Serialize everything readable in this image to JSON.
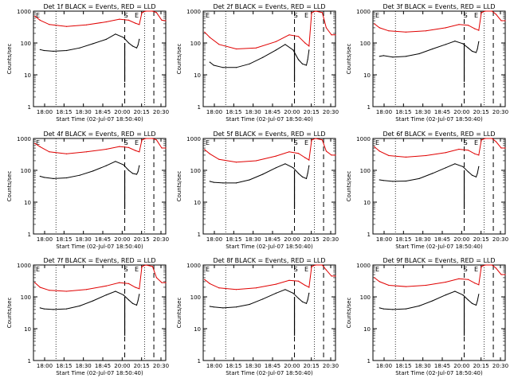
{
  "window": {
    "title": ""
  },
  "colors": {
    "events": "#000000",
    "lld": "#e00000",
    "axes": "#000000"
  },
  "chart_data": [
    {
      "type": "line",
      "title": "Det 1f BLACK = Events, RED = LLD",
      "ylabel": "Counts/sec",
      "xlabel": "Start Time (02-Jul-07 18:50:40)",
      "xticks": [
        "18:00",
        "18:15",
        "18:30",
        "18:45",
        "20:00",
        "20:15",
        "20:30"
      ],
      "yticks": [
        "1",
        "10",
        "100",
        "1000"
      ],
      "yscale": "log",
      "ylim": [
        1,
        1000
      ],
      "markers": [
        "S",
        "E"
      ],
      "series": [
        {
          "name": "BLACK = Events",
          "x": [
            0.05,
            0.08,
            0.15,
            0.25,
            0.35,
            0.45,
            0.55,
            0.62,
            0.68,
            0.72,
            0.75,
            0.78,
            0.79,
            0.8
          ],
          "y": [
            62,
            58,
            55,
            58,
            70,
            95,
            130,
            190,
            150,
            100,
            80,
            70,
            85,
            130
          ]
        },
        {
          "name": "RED = LLD",
          "x": [
            0.01,
            0.05,
            0.12,
            0.25,
            0.4,
            0.55,
            0.65,
            0.72,
            0.77,
            0.8,
            0.82,
            0.85,
            0.9,
            0.93,
            0.97,
            1.0
          ],
          "y": [
            700,
            520,
            380,
            330,
            370,
            460,
            560,
            520,
            420,
            380,
            900,
            1000,
            1000,
            900,
            520,
            500
          ]
        }
      ]
    },
    {
      "type": "line",
      "title": "Det 2f BLACK = Events, RED = LLD",
      "ylabel": "Counts/sec",
      "xlabel": "Start Time (02-Jul-07 18:50:40)",
      "xticks": [
        "18:00",
        "18:15",
        "18:30",
        "18:45",
        "20:00",
        "20:15",
        "20:30"
      ],
      "yticks": [
        "1",
        "10",
        "100",
        "1000"
      ],
      "yscale": "log",
      "ylim": [
        1,
        1000
      ],
      "markers": [
        "S",
        "E"
      ],
      "series": [
        {
          "name": "BLACK = Events",
          "x": [
            0.05,
            0.08,
            0.15,
            0.25,
            0.35,
            0.45,
            0.55,
            0.62,
            0.68,
            0.72,
            0.75,
            0.78,
            0.79,
            0.8
          ],
          "y": [
            25,
            20,
            17,
            17,
            22,
            35,
            60,
            90,
            60,
            30,
            22,
            20,
            30,
            60
          ]
        },
        {
          "name": "RED = LLD",
          "x": [
            0.01,
            0.05,
            0.12,
            0.25,
            0.4,
            0.55,
            0.65,
            0.72,
            0.77,
            0.8,
            0.82,
            0.85,
            0.9,
            0.93,
            0.97,
            1.0
          ],
          "y": [
            220,
            150,
            90,
            65,
            70,
            110,
            180,
            160,
            100,
            80,
            900,
            1000,
            900,
            300,
            180,
            180
          ]
        }
      ]
    },
    {
      "type": "line",
      "title": "Det 3f BLACK = Events, RED = LLD",
      "ylabel": "Counts/sec",
      "xlabel": "Start Time (02-Jul-07 18:50:40)",
      "xticks": [
        "18:00",
        "18:15",
        "18:30",
        "18:45",
        "20:00",
        "20:15",
        "20:30"
      ],
      "yticks": [
        "1",
        "10",
        "100",
        "1000"
      ],
      "yscale": "log",
      "ylim": [
        1,
        1000
      ],
      "markers": [
        "S",
        "E"
      ],
      "series": [
        {
          "name": "BLACK = Events",
          "x": [
            0.05,
            0.08,
            0.15,
            0.25,
            0.35,
            0.45,
            0.55,
            0.62,
            0.68,
            0.72,
            0.75,
            0.78,
            0.79,
            0.8
          ],
          "y": [
            38,
            40,
            36,
            38,
            46,
            65,
            90,
            115,
            95,
            70,
            55,
            50,
            65,
            110
          ]
        },
        {
          "name": "RED = LLD",
          "x": [
            0.01,
            0.05,
            0.12,
            0.25,
            0.4,
            0.55,
            0.65,
            0.72,
            0.77,
            0.8,
            0.82,
            0.85,
            0.9,
            0.93,
            0.97,
            1.0
          ],
          "y": [
            400,
            300,
            240,
            220,
            240,
            300,
            380,
            360,
            280,
            250,
            900,
            1000,
            1000,
            800,
            500,
            500
          ]
        }
      ]
    },
    {
      "type": "line",
      "title": "Det 4f BLACK = Events, RED = LLD",
      "ylabel": "Counts/sec",
      "xlabel": "Start Time (02-Jul-07 18:50:40)",
      "xticks": [
        "18:00",
        "18:15",
        "18:30",
        "18:45",
        "20:00",
        "20:15",
        "20:30"
      ],
      "yticks": [
        "1",
        "10",
        "100",
        "1000"
      ],
      "yscale": "log",
      "ylim": [
        1,
        1000
      ],
      "markers": [
        "S",
        "E"
      ],
      "series": [
        {
          "name": "BLACK = Events",
          "x": [
            0.05,
            0.08,
            0.15,
            0.25,
            0.35,
            0.45,
            0.55,
            0.62,
            0.68,
            0.72,
            0.75,
            0.78,
            0.79,
            0.8
          ],
          "y": [
            65,
            60,
            55,
            58,
            70,
            95,
            140,
            190,
            150,
            100,
            80,
            75,
            90,
            140
          ]
        },
        {
          "name": "RED = LLD",
          "x": [
            0.01,
            0.05,
            0.12,
            0.25,
            0.4,
            0.55,
            0.65,
            0.72,
            0.77,
            0.8,
            0.82,
            0.85,
            0.9,
            0.93,
            0.97,
            1.0
          ],
          "y": [
            700,
            550,
            380,
            330,
            380,
            460,
            560,
            520,
            420,
            380,
            900,
            1000,
            1000,
            900,
            500,
            500
          ]
        }
      ]
    },
    {
      "type": "line",
      "title": "Det 5f BLACK = Events, RED = LLD",
      "ylabel": "Counts/sec",
      "xlabel": "Start Time (02-Jul-07 18:50:40)",
      "xticks": [
        "18:00",
        "18:15",
        "18:30",
        "18:45",
        "20:00",
        "20:15",
        "20:30"
      ],
      "yticks": [
        "1",
        "10",
        "100",
        "1000"
      ],
      "yscale": "log",
      "ylim": [
        1,
        1000
      ],
      "markers": [
        "S",
        "E"
      ],
      "series": [
        {
          "name": "BLACK = Events",
          "x": [
            0.05,
            0.08,
            0.15,
            0.25,
            0.35,
            0.45,
            0.55,
            0.62,
            0.68,
            0.72,
            0.75,
            0.78,
            0.79,
            0.8
          ],
          "y": [
            45,
            42,
            40,
            40,
            50,
            75,
            120,
            160,
            120,
            80,
            62,
            55,
            80,
            140
          ]
        },
        {
          "name": "RED = LLD",
          "x": [
            0.01,
            0.05,
            0.12,
            0.25,
            0.4,
            0.55,
            0.65,
            0.72,
            0.77,
            0.8,
            0.82,
            0.85,
            0.9,
            0.93,
            0.97,
            1.0
          ],
          "y": [
            450,
            330,
            220,
            180,
            200,
            280,
            380,
            340,
            250,
            210,
            900,
            1000,
            900,
            400,
            300,
            300
          ]
        }
      ]
    },
    {
      "type": "line",
      "title": "Det 6f BLACK = Events, RED = LLD",
      "ylabel": "Counts/sec",
      "xlabel": "Start Time (02-Jul-07 18:50:40)",
      "xticks": [
        "18:00",
        "18:15",
        "18:30",
        "18:45",
        "20:00",
        "20:15",
        "20:30"
      ],
      "yticks": [
        "1",
        "10",
        "100",
        "1000"
      ],
      "yscale": "log",
      "ylim": [
        1,
        1000
      ],
      "markers": [
        "S",
        "E"
      ],
      "series": [
        {
          "name": "BLACK = Events",
          "x": [
            0.05,
            0.08,
            0.15,
            0.25,
            0.35,
            0.45,
            0.55,
            0.62,
            0.68,
            0.72,
            0.75,
            0.78,
            0.79,
            0.8
          ],
          "y": [
            50,
            48,
            45,
            46,
            55,
            80,
            120,
            160,
            130,
            90,
            70,
            62,
            80,
            130
          ]
        },
        {
          "name": "RED = LLD",
          "x": [
            0.01,
            0.05,
            0.12,
            0.25,
            0.4,
            0.55,
            0.65,
            0.72,
            0.77,
            0.8,
            0.82,
            0.85,
            0.9,
            0.93,
            0.97,
            1.0
          ],
          "y": [
            550,
            400,
            290,
            260,
            290,
            360,
            460,
            430,
            330,
            300,
            900,
            1000,
            1000,
            800,
            500,
            500
          ]
        }
      ]
    },
    {
      "type": "line",
      "title": "Det 7f BLACK = Events, RED = LLD",
      "ylabel": "Counts/sec",
      "xlabel": "Start Time (02-Jul-07 18:50:40)",
      "xticks": [
        "18:00",
        "18:15",
        "18:30",
        "18:45",
        "20:00",
        "20:15",
        "20:30"
      ],
      "yticks": [
        "1",
        "10",
        "100",
        "1000"
      ],
      "yscale": "log",
      "ylim": [
        1,
        1000
      ],
      "markers": [
        "S",
        "E"
      ],
      "series": [
        {
          "name": "BLACK = Events",
          "x": [
            0.05,
            0.08,
            0.15,
            0.25,
            0.35,
            0.45,
            0.55,
            0.62,
            0.68,
            0.72,
            0.75,
            0.78,
            0.79,
            0.8
          ],
          "y": [
            45,
            42,
            40,
            42,
            52,
            75,
            115,
            150,
            115,
            80,
            62,
            55,
            75,
            120
          ]
        },
        {
          "name": "RED = LLD",
          "x": [
            0.01,
            0.05,
            0.12,
            0.25,
            0.4,
            0.55,
            0.65,
            0.72,
            0.77,
            0.8,
            0.82,
            0.85,
            0.9,
            0.93,
            0.97,
            1.0
          ],
          "y": [
            280,
            200,
            160,
            150,
            170,
            220,
            280,
            260,
            200,
            180,
            900,
            1000,
            900,
            400,
            280,
            280
          ]
        }
      ]
    },
    {
      "type": "line",
      "title": "Det 8f BLACK = Events, RED = LLD",
      "ylabel": "Counts/sec",
      "xlabel": "Start Time (02-Jul-07 18:50:40)",
      "xticks": [
        "18:00",
        "18:15",
        "18:30",
        "18:45",
        "20:00",
        "20:15",
        "20:30"
      ],
      "yticks": [
        "1",
        "10",
        "100",
        "1000"
      ],
      "yscale": "log",
      "ylim": [
        1,
        1000
      ],
      "markers": [
        "S",
        "E"
      ],
      "series": [
        {
          "name": "BLACK = Events",
          "x": [
            0.05,
            0.08,
            0.15,
            0.25,
            0.35,
            0.45,
            0.55,
            0.62,
            0.68,
            0.72,
            0.75,
            0.78,
            0.79,
            0.8
          ],
          "y": [
            50,
            48,
            45,
            48,
            58,
            85,
            130,
            170,
            130,
            90,
            70,
            62,
            80,
            130
          ]
        },
        {
          "name": "RED = LLD",
          "x": [
            0.01,
            0.05,
            0.12,
            0.25,
            0.4,
            0.55,
            0.65,
            0.72,
            0.77,
            0.8,
            0.82,
            0.85,
            0.9,
            0.93,
            0.97,
            1.0
          ],
          "y": [
            350,
            260,
            190,
            170,
            190,
            250,
            330,
            310,
            230,
            200,
            900,
            1000,
            1000,
            700,
            450,
            450
          ]
        }
      ]
    },
    {
      "type": "line",
      "title": "Det 9f BLACK = Events, RED = LLD",
      "ylabel": "Counts/sec",
      "xlabel": "Start Time (02-Jul-07 18:50:40)",
      "xticks": [
        "18:00",
        "18:15",
        "18:30",
        "18:45",
        "20:00",
        "20:15",
        "20:30"
      ],
      "yticks": [
        "1",
        "10",
        "100",
        "1000"
      ],
      "yscale": "log",
      "ylim": [
        1,
        1000
      ],
      "markers": [
        "S",
        "E"
      ],
      "series": [
        {
          "name": "BLACK = Events",
          "x": [
            0.05,
            0.08,
            0.15,
            0.25,
            0.35,
            0.45,
            0.55,
            0.62,
            0.68,
            0.72,
            0.75,
            0.78,
            0.79,
            0.8
          ],
          "y": [
            45,
            42,
            40,
            42,
            52,
            75,
            115,
            150,
            115,
            80,
            62,
            55,
            75,
            120
          ]
        },
        {
          "name": "RED = LLD",
          "x": [
            0.01,
            0.05,
            0.12,
            0.25,
            0.4,
            0.55,
            0.65,
            0.72,
            0.77,
            0.8,
            0.82,
            0.85,
            0.9,
            0.93,
            0.97,
            1.0
          ],
          "y": [
            400,
            300,
            230,
            210,
            230,
            290,
            370,
            350,
            270,
            240,
            900,
            1000,
            1000,
            800,
            500,
            500
          ]
        }
      ]
    }
  ]
}
